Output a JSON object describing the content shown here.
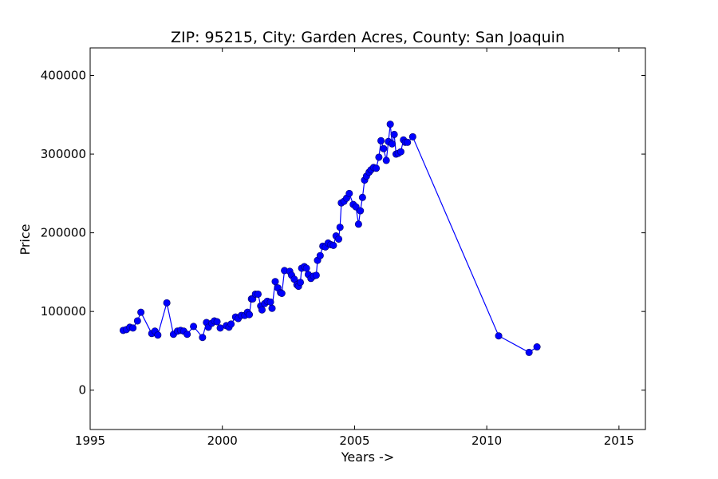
{
  "chart_data": {
    "type": "line",
    "title": "ZIP: 95215, City: Garden Acres, County: San Joaquin",
    "xlabel": "Years ->",
    "ylabel": "Price",
    "xlim": [
      1995,
      2016
    ],
    "ylim": [
      -50000,
      435000
    ],
    "xticks": [
      1995,
      2000,
      2005,
      2010,
      2015
    ],
    "yticks": [
      0,
      100000,
      200000,
      300000,
      400000
    ],
    "grid": false,
    "legend": "none",
    "line_color": "#0000ff",
    "marker": "circle",
    "series": [
      {
        "x": [
          1996.25,
          1996.37,
          1996.5,
          1996.62,
          1996.79,
          1996.92,
          1997.33,
          1997.45,
          1997.56,
          1997.9,
          1998.15,
          1998.3,
          1998.42,
          1998.54,
          1998.67,
          1998.91,
          1999.25,
          1999.4,
          1999.47,
          1999.6,
          1999.7,
          1999.8,
          1999.92,
          2000.15,
          2000.25,
          2000.33,
          2000.5,
          2000.6,
          2000.72,
          2000.85,
          2000.95,
          2001.02,
          2001.1,
          2001.15,
          2001.25,
          2001.35,
          2001.45,
          2001.5,
          2001.6,
          2001.7,
          2001.82,
          2001.88,
          2002.0,
          2002.1,
          2002.2,
          2002.25,
          2002.35,
          2002.55,
          2002.62,
          2002.72,
          2002.82,
          2002.88,
          2002.95,
          2003.0,
          2003.1,
          2003.18,
          2003.25,
          2003.35,
          2003.45,
          2003.55,
          2003.6,
          2003.7,
          2003.8,
          2003.9,
          2004.0,
          2004.1,
          2004.2,
          2004.3,
          2004.4,
          2004.45,
          2004.5,
          2004.6,
          2004.7,
          2004.8,
          2004.95,
          2005.05,
          2005.15,
          2005.22,
          2005.3,
          2005.38,
          2005.45,
          2005.55,
          2005.62,
          2005.72,
          2005.82,
          2005.92,
          2006.0,
          2006.1,
          2006.2,
          2006.28,
          2006.35,
          2006.42,
          2006.5,
          2006.57,
          2006.65,
          2006.75,
          2006.85,
          2006.92,
          2007.0,
          2007.2,
          2010.45,
          2011.6,
          2011.9
        ],
        "y": [
          76000,
          77000,
          80000,
          79000,
          88000,
          99000,
          72000,
          75000,
          70000,
          111000,
          71000,
          75000,
          76000,
          75000,
          71000,
          81000,
          67000,
          86000,
          80000,
          85000,
          88000,
          87000,
          79000,
          82000,
          80000,
          84000,
          93000,
          91000,
          95000,
          95000,
          99000,
          96000,
          116000,
          116000,
          122000,
          122000,
          107000,
          102000,
          110000,
          113000,
          112000,
          104000,
          138000,
          130000,
          124000,
          123000,
          152000,
          151000,
          146000,
          141000,
          134000,
          132000,
          137000,
          155000,
          157000,
          155000,
          147000,
          142000,
          145000,
          146000,
          165000,
          171000,
          183000,
          182000,
          187000,
          185000,
          184000,
          196000,
          192000,
          207000,
          238000,
          240000,
          244000,
          250000,
          236000,
          233000,
          211000,
          228000,
          245000,
          267000,
          272000,
          277000,
          280000,
          283000,
          282000,
          296000,
          317000,
          307000,
          292000,
          316000,
          338000,
          313000,
          325000,
          300000,
          301000,
          303000,
          318000,
          315000,
          315000,
          322000,
          69000,
          48000,
          55000
        ]
      }
    ]
  }
}
